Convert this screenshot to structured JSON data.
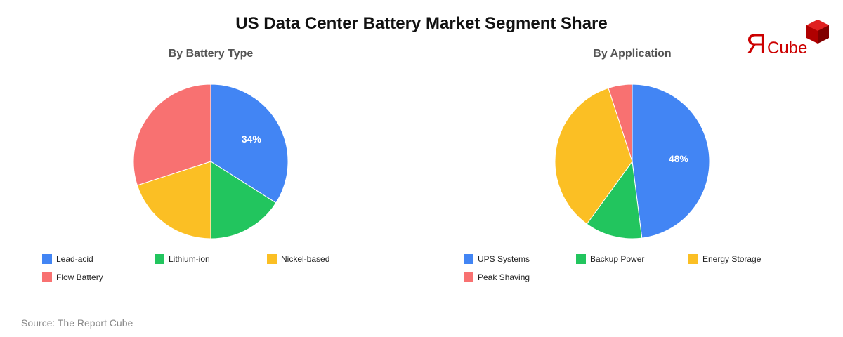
{
  "title": "US Data Center Battery Market Segment Share",
  "source": "Source: The Report Cube",
  "logo": {
    "text": "ЯCube",
    "color": "#cc0000"
  },
  "chart_data": [
    {
      "type": "pie",
      "title": "By Battery Type",
      "categories": [
        "Lead-acid",
        "Lithium-ion",
        "Nickel-based",
        "Flow Battery"
      ],
      "values": [
        34,
        16,
        20,
        30
      ],
      "colors": [
        "#4285f4",
        "#22c55e",
        "#fbbf24",
        "#f87171"
      ],
      "labels_shown": [
        "34%",
        "",
        "",
        ""
      ],
      "legend": "bottom"
    },
    {
      "type": "pie",
      "title": "By Application",
      "categories": [
        "UPS Systems",
        "Backup Power",
        "Energy Storage",
        "Peak Shaving"
      ],
      "values": [
        48,
        12,
        35,
        5
      ],
      "colors": [
        "#4285f4",
        "#22c55e",
        "#fbbf24",
        "#f87171"
      ],
      "labels_shown": [
        "48%",
        "",
        "",
        ""
      ],
      "legend": "bottom"
    }
  ]
}
